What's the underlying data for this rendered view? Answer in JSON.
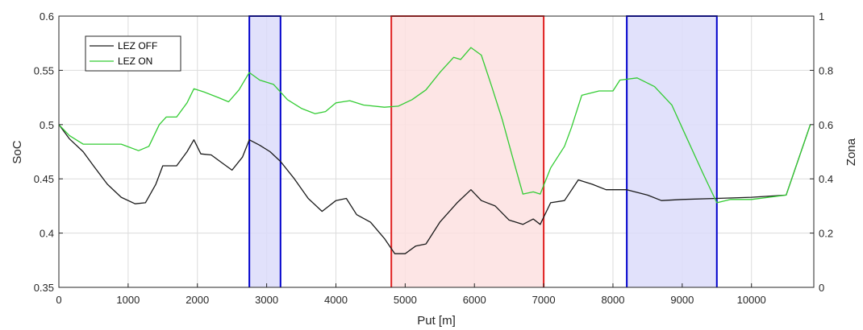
{
  "chart_data": {
    "type": "line",
    "xlabel": "Put [m]",
    "ylabel_left": "SoC",
    "ylabel_right": "Zona",
    "xlim": [
      0,
      10900
    ],
    "ylim_left": [
      0.35,
      0.6
    ],
    "ylim_right": [
      0,
      1
    ],
    "x_ticks": [
      0,
      1000,
      2000,
      3000,
      4000,
      5000,
      6000,
      7000,
      8000,
      9000,
      10000
    ],
    "y_left_ticks": [
      0.35,
      0.4,
      0.45,
      0.5,
      0.55,
      0.6
    ],
    "y_right_ticks": [
      0,
      0.2,
      0.4,
      0.6,
      0.8,
      1
    ],
    "grid": true,
    "legend_position": "top-left",
    "series": [
      {
        "name": "LEZ OFF",
        "color": "#1a1a1a",
        "points": [
          [
            0,
            0.5
          ],
          [
            150,
            0.487
          ],
          [
            350,
            0.475
          ],
          [
            500,
            0.462
          ],
          [
            700,
            0.445
          ],
          [
            900,
            0.433
          ],
          [
            1100,
            0.427
          ],
          [
            1250,
            0.428
          ],
          [
            1400,
            0.445
          ],
          [
            1500,
            0.462
          ],
          [
            1700,
            0.462
          ],
          [
            1850,
            0.475
          ],
          [
            1950,
            0.486
          ],
          [
            2050,
            0.473
          ],
          [
            2200,
            0.472
          ],
          [
            2350,
            0.465
          ],
          [
            2500,
            0.458
          ],
          [
            2650,
            0.47
          ],
          [
            2750,
            0.486
          ],
          [
            2900,
            0.481
          ],
          [
            3050,
            0.475
          ],
          [
            3200,
            0.466
          ],
          [
            3400,
            0.45
          ],
          [
            3600,
            0.432
          ],
          [
            3800,
            0.42
          ],
          [
            4000,
            0.43
          ],
          [
            4150,
            0.432
          ],
          [
            4300,
            0.417
          ],
          [
            4500,
            0.41
          ],
          [
            4700,
            0.395
          ],
          [
            4850,
            0.381
          ],
          [
            5000,
            0.381
          ],
          [
            5150,
            0.388
          ],
          [
            5300,
            0.39
          ],
          [
            5500,
            0.41
          ],
          [
            5750,
            0.428
          ],
          [
            5950,
            0.44
          ],
          [
            6100,
            0.43
          ],
          [
            6300,
            0.425
          ],
          [
            6500,
            0.412
          ],
          [
            6700,
            0.408
          ],
          [
            6850,
            0.413
          ],
          [
            6950,
            0.408
          ],
          [
            7100,
            0.428
          ],
          [
            7300,
            0.43
          ],
          [
            7500,
            0.449
          ],
          [
            7700,
            0.445
          ],
          [
            7900,
            0.44
          ],
          [
            8200,
            0.44
          ],
          [
            8500,
            0.435
          ],
          [
            8700,
            0.43
          ],
          [
            9000,
            0.431
          ],
          [
            9500,
            0.432
          ],
          [
            10000,
            0.433
          ],
          [
            10500,
            0.435
          ],
          [
            10850,
            0.5
          ]
        ]
      },
      {
        "name": "LEZ ON",
        "color": "#33cc33",
        "points": [
          [
            0,
            0.5
          ],
          [
            150,
            0.49
          ],
          [
            350,
            0.482
          ],
          [
            900,
            0.482
          ],
          [
            1150,
            0.476
          ],
          [
            1300,
            0.48
          ],
          [
            1450,
            0.5
          ],
          [
            1550,
            0.507
          ],
          [
            1700,
            0.507
          ],
          [
            1850,
            0.52
          ],
          [
            1950,
            0.533
          ],
          [
            2100,
            0.53
          ],
          [
            2300,
            0.525
          ],
          [
            2450,
            0.521
          ],
          [
            2600,
            0.532
          ],
          [
            2750,
            0.548
          ],
          [
            2900,
            0.541
          ],
          [
            3100,
            0.537
          ],
          [
            3300,
            0.523
          ],
          [
            3500,
            0.515
          ],
          [
            3700,
            0.51
          ],
          [
            3850,
            0.512
          ],
          [
            4000,
            0.52
          ],
          [
            4200,
            0.522
          ],
          [
            4400,
            0.518
          ],
          [
            4700,
            0.516
          ],
          [
            4900,
            0.517
          ],
          [
            5100,
            0.523
          ],
          [
            5300,
            0.532
          ],
          [
            5500,
            0.548
          ],
          [
            5700,
            0.562
          ],
          [
            5800,
            0.56
          ],
          [
            5950,
            0.571
          ],
          [
            6100,
            0.564
          ],
          [
            6250,
            0.535
          ],
          [
            6400,
            0.505
          ],
          [
            6550,
            0.47
          ],
          [
            6700,
            0.436
          ],
          [
            6850,
            0.438
          ],
          [
            6950,
            0.436
          ],
          [
            7100,
            0.46
          ],
          [
            7300,
            0.48
          ],
          [
            7400,
            0.497
          ],
          [
            7550,
            0.527
          ],
          [
            7800,
            0.531
          ],
          [
            8000,
            0.531
          ],
          [
            8100,
            0.541
          ],
          [
            8350,
            0.543
          ],
          [
            8600,
            0.535
          ],
          [
            8850,
            0.518
          ],
          [
            9050,
            0.49
          ],
          [
            9300,
            0.455
          ],
          [
            9500,
            0.428
          ],
          [
            9700,
            0.431
          ],
          [
            10000,
            0.431
          ],
          [
            10500,
            0.435
          ],
          [
            10850,
            0.5
          ]
        ]
      }
    ],
    "zones": [
      {
        "x0": 2750,
        "x1": 3200,
        "value": 1,
        "edge_color": "#0000cc",
        "fill_color": "#dcdcfa"
      },
      {
        "x0": 4800,
        "x1": 7000,
        "value": 1,
        "edge_color": "#e02020",
        "fill_color": "#fde0e0"
      },
      {
        "x0": 8200,
        "x1": 9500,
        "value": 1,
        "edge_color": "#0000cc",
        "fill_color": "#dcdcfa"
      }
    ]
  }
}
